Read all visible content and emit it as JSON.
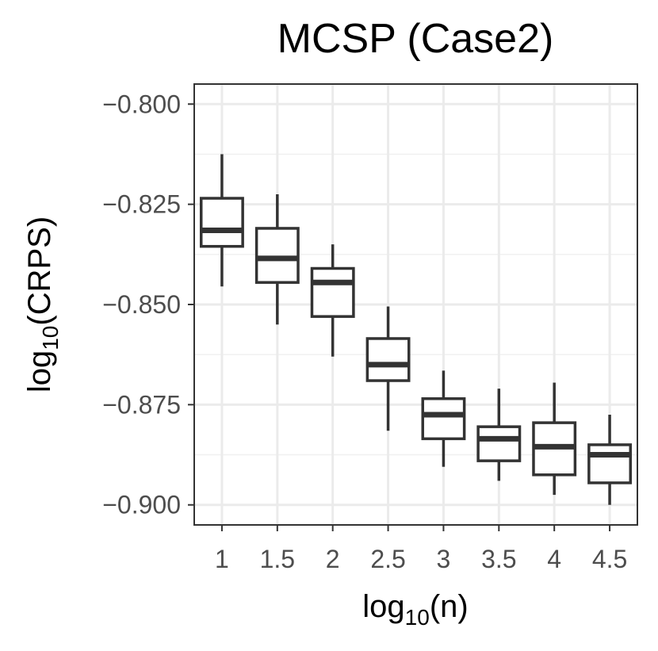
{
  "chart_data": {
    "type": "box",
    "title": "MCSP (Case2)",
    "xlabel_base": "log",
    "xlabel_sub": "10",
    "xlabel_rest": "(n)",
    "ylabel_base": "log",
    "ylabel_sub": "10",
    "ylabel_rest": "(CRPS)",
    "categories": [
      "1",
      "1.5",
      "2",
      "2.5",
      "3",
      "3.5",
      "4",
      "4.5"
    ],
    "ylim": [
      -0.905,
      -0.795
    ],
    "yticks": [
      -0.8,
      -0.825,
      -0.85,
      -0.875,
      -0.9
    ],
    "ytick_labels": [
      "−0.800",
      "−0.825",
      "−0.850",
      "−0.875",
      "−0.900"
    ],
    "grid": true,
    "boxes": [
      {
        "x": "1",
        "whisker_low": -0.8455,
        "q1": -0.8355,
        "median": -0.8315,
        "q3": -0.8235,
        "whisker_high": -0.8125
      },
      {
        "x": "1.5",
        "whisker_low": -0.855,
        "q1": -0.8445,
        "median": -0.8385,
        "q3": -0.831,
        "whisker_high": -0.8225
      },
      {
        "x": "2",
        "whisker_low": -0.863,
        "q1": -0.853,
        "median": -0.8445,
        "q3": -0.841,
        "whisker_high": -0.835
      },
      {
        "x": "2.5",
        "whisker_low": -0.8815,
        "q1": -0.869,
        "median": -0.865,
        "q3": -0.8585,
        "whisker_high": -0.8505
      },
      {
        "x": "3",
        "whisker_low": -0.8905,
        "q1": -0.8835,
        "median": -0.8775,
        "q3": -0.8735,
        "whisker_high": -0.8665
      },
      {
        "x": "3.5",
        "whisker_low": -0.894,
        "q1": -0.889,
        "median": -0.8835,
        "q3": -0.8805,
        "whisker_high": -0.871
      },
      {
        "x": "4",
        "whisker_low": -0.8975,
        "q1": -0.8925,
        "median": -0.8855,
        "q3": -0.8795,
        "whisker_high": -0.8695
      },
      {
        "x": "4.5",
        "whisker_low": -0.9,
        "q1": -0.8945,
        "median": -0.8875,
        "q3": -0.885,
        "whisker_high": -0.8775
      }
    ]
  }
}
